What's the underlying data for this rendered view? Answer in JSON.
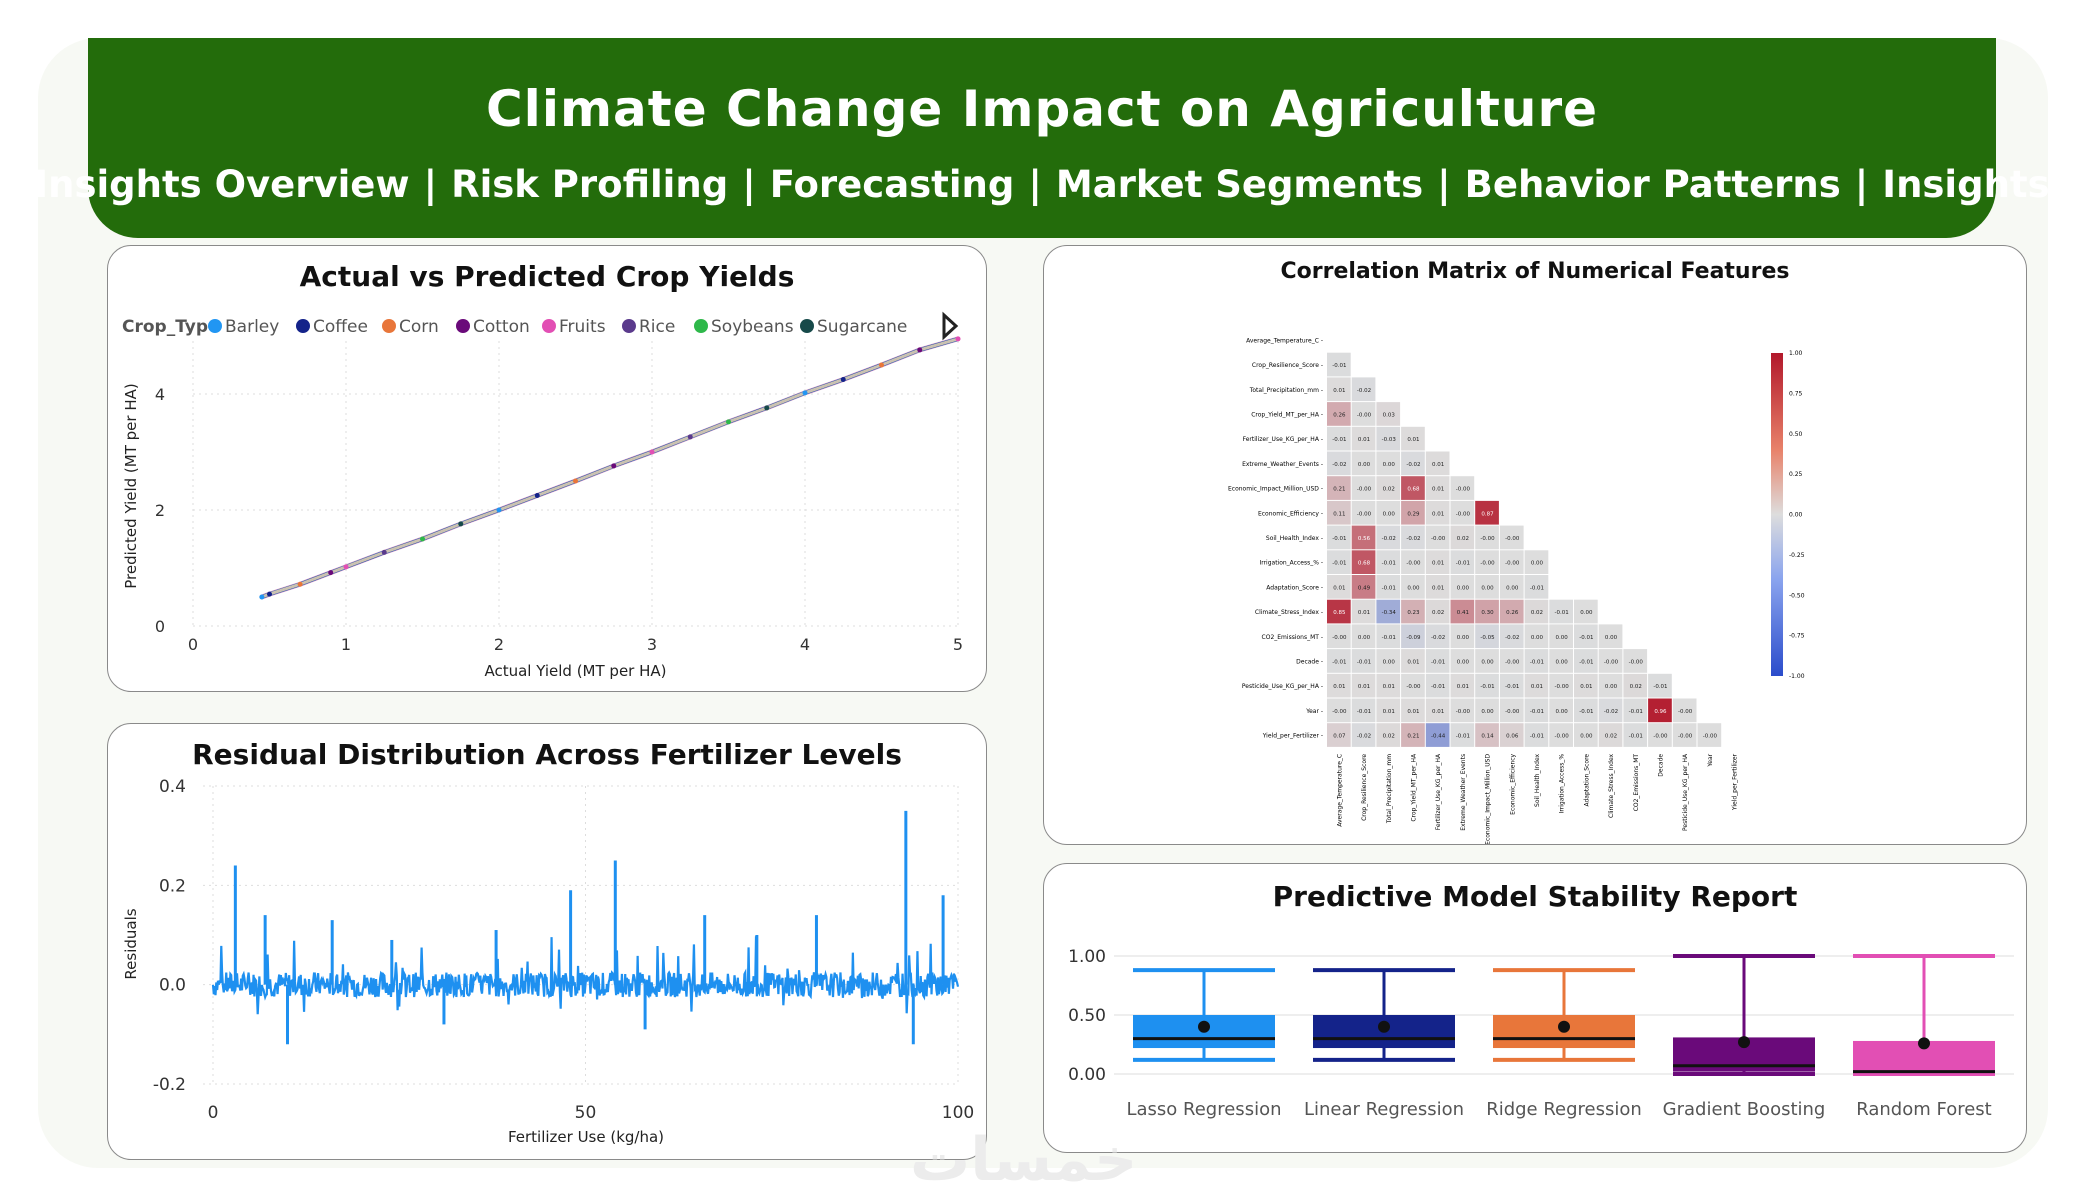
{
  "header": {
    "title": "Climate Change Impact on Agriculture",
    "nav": [
      "Insights Overview",
      "Risk Profiling",
      "Forecasting",
      "Market Segments",
      "Behavior Patterns",
      "Insights"
    ],
    "separator": "|"
  },
  "watermark": "خمسات",
  "colors": {
    "header_bg": "#236c0b",
    "blue": "#1e90f0",
    "corr_pos": "#b2182b",
    "corr_neg": "#2b4ccb"
  },
  "scatter": {
    "title": "Actual vs Predicted Crop Yields",
    "legend_title": "Crop_Type",
    "legend": [
      {
        "name": "Barley",
        "color": "#2196f3"
      },
      {
        "name": "Coffee",
        "color": "#14238a"
      },
      {
        "name": "Corn",
        "color": "#e8763a"
      },
      {
        "name": "Cotton",
        "color": "#6a0a7a"
      },
      {
        "name": "Fruits",
        "color": "#e24fb4"
      },
      {
        "name": "Rice",
        "color": "#5a3a8c"
      },
      {
        "name": "Soybeans",
        "color": "#2eb84a"
      },
      {
        "name": "Sugarcane",
        "color": "#174a4a"
      }
    ]
  },
  "residual": {
    "title": "Residual Distribution Across Fertilizer Levels"
  },
  "correlation": {
    "title": "Correlation Matrix of Numerical Features",
    "features": [
      "Average_Temperature_C",
      "Crop_Resilience_Score",
      "Total_Precipitation_mm",
      "Crop_Yield_MT_per_HA",
      "Fertilizer_Use_KG_per_HA",
      "Extreme_Weather_Events",
      "Economic_Impact_Million_USD",
      "Economic_Efficiency",
      "Soil_Health_Index",
      "Irrigation_Access_%",
      "Adaptation_Score",
      "Climate_Stress_Index",
      "CO2_Emissions_MT",
      "Decade",
      "Pesticide_Use_KG_per_HA",
      "Year",
      "Yield_per_Fertilizer"
    ],
    "rows": [
      [],
      [
        "-0.01"
      ],
      [
        "0.01",
        "-0.02"
      ],
      [
        "0.26",
        "-0.00",
        "0.03"
      ],
      [
        "-0.01",
        "0.01",
        "-0.03",
        "0.01"
      ],
      [
        "-0.02",
        "0.00",
        "0.00",
        "-0.02",
        "0.01"
      ],
      [
        "0.21",
        "-0.00",
        "0.02",
        "0.68",
        "0.01",
        "-0.00"
      ],
      [
        "0.11",
        "-0.00",
        "0.00",
        "0.29",
        "0.01",
        "-0.00",
        "0.87"
      ],
      [
        "-0.01",
        "0.56",
        "-0.02",
        "-0.02",
        "-0.00",
        "0.02",
        "-0.00",
        "-0.00"
      ],
      [
        "-0.01",
        "0.68",
        "-0.01",
        "-0.00",
        "0.01",
        "-0.01",
        "-0.00",
        "-0.00",
        "0.00"
      ],
      [
        "0.01",
        "0.49",
        "-0.01",
        "0.00",
        "0.01",
        "0.00",
        "0.00",
        "0.00",
        "-0.01"
      ],
      [
        "0.85",
        "0.01",
        "-0.34",
        "0.23",
        "0.02",
        "0.41",
        "0.30",
        "0.26",
        "0.02",
        "-0.01",
        "0.00"
      ],
      [
        "-0.00",
        "0.00",
        "-0.01",
        "-0.09",
        "-0.02",
        "0.00",
        "-0.05",
        "-0.02",
        "0.00",
        "0.00",
        "-0.01",
        "0.00"
      ],
      [
        "-0.01",
        "-0.01",
        "0.00",
        "0.01",
        "-0.01",
        "0.00",
        "0.00",
        "-0.00",
        "-0.01",
        "0.00",
        "-0.01",
        "-0.00",
        "-0.00"
      ],
      [
        "0.01",
        "0.01",
        "0.01",
        "-0.00",
        "-0.01",
        "0.01",
        "-0.01",
        "-0.01",
        "0.01",
        "-0.00",
        "0.01",
        "0.00",
        "0.02",
        "-0.01"
      ],
      [
        "-0.00",
        "-0.01",
        "0.01",
        "0.01",
        "0.01",
        "-0.00",
        "0.00",
        "-0.00",
        "-0.01",
        "0.00",
        "-0.01",
        "-0.02",
        "-0.01",
        "0.96",
        "-0.00"
      ],
      [
        "0.07",
        "-0.02",
        "0.02",
        "0.21",
        "-0.44",
        "-0.01",
        "0.14",
        "0.06",
        "-0.01",
        "-0.00",
        "0.00",
        "0.02",
        "-0.01",
        "-0.00",
        "-0.00",
        "-0.00"
      ]
    ],
    "colorbar_ticks": [
      "1.00",
      "0.75",
      "0.50",
      "0.25",
      "0.00",
      "-0.25",
      "-0.50",
      "-0.75",
      "-1.00"
    ]
  },
  "stability": {
    "title": "Predictive Model Stability Report"
  },
  "chart_data": [
    {
      "type": "scatter",
      "title": "Actual vs Predicted Crop Yields",
      "xlabel": "Actual Yield (MT per HA)",
      "ylabel": "Predicted Yield (MT per HA)",
      "xlim": [
        0,
        5
      ],
      "ylim": [
        0,
        5
      ],
      "xticks": [
        "0",
        "1",
        "2",
        "3",
        "4",
        "5"
      ],
      "yticks": [
        "0",
        "2",
        "4"
      ],
      "series_note": "points from 0.45 to 5.0 along the diagonal, colored by Crop_Type",
      "x": [
        0.45,
        0.5,
        0.7,
        0.9,
        1.0,
        1.25,
        1.5,
        1.75,
        2.0,
        2.25,
        2.5,
        2.75,
        3.0,
        3.25,
        3.5,
        3.75,
        4.0,
        4.25,
        4.5,
        4.75,
        5.0
      ],
      "y": [
        0.5,
        0.55,
        0.72,
        0.92,
        1.02,
        1.27,
        1.5,
        1.76,
        2.0,
        2.25,
        2.5,
        2.76,
        3.0,
        3.26,
        3.52,
        3.76,
        4.02,
        4.25,
        4.5,
        4.76,
        4.95
      ]
    },
    {
      "type": "line",
      "title": "Residual Distribution Across Fertilizer Levels",
      "xlabel": "Fertilizer Use (kg/ha)",
      "ylabel": "Residuals",
      "xlim": [
        0,
        100
      ],
      "ylim": [
        -0.2,
        0.4
      ],
      "xticks": [
        "0",
        "50",
        "100"
      ],
      "yticks": [
        "-0.2",
        "0.0",
        "0.2",
        "0.4"
      ],
      "series": [
        {
          "name": "Residuals",
          "color": "#1e90f0"
        }
      ],
      "spikes": [
        {
          "x": 3,
          "y": 0.24
        },
        {
          "x": 7,
          "y": 0.14
        },
        {
          "x": 10,
          "y": -0.12
        },
        {
          "x": 16,
          "y": 0.13
        },
        {
          "x": 24,
          "y": 0.09
        },
        {
          "x": 31,
          "y": -0.08
        },
        {
          "x": 38,
          "y": 0.11
        },
        {
          "x": 48,
          "y": 0.19
        },
        {
          "x": 54,
          "y": 0.25
        },
        {
          "x": 58,
          "y": -0.09
        },
        {
          "x": 66,
          "y": 0.14
        },
        {
          "x": 73,
          "y": 0.1
        },
        {
          "x": 81,
          "y": 0.14
        },
        {
          "x": 93,
          "y": 0.35
        },
        {
          "x": 94,
          "y": -0.12
        },
        {
          "x": 98,
          "y": 0.18
        }
      ]
    },
    {
      "type": "heatmap",
      "title": "Correlation Matrix of Numerical Features",
      "note": "lower-triangular matrix; values in correlation.rows",
      "range": [
        -1,
        1
      ]
    },
    {
      "type": "box",
      "title": "Predictive Model Stability Report",
      "categories": [
        "Lasso Regression",
        "Linear Regression",
        "Ridge Regression",
        "Gradient Boosting",
        "Random Forest"
      ],
      "yticks": [
        "0.00",
        "0.50",
        "1.00"
      ],
      "ylim": [
        -0.05,
        1.05
      ],
      "series": [
        {
          "name": "Lasso Regression",
          "color": "#1e90f0",
          "min": 0.12,
          "q1": 0.22,
          "median": 0.3,
          "q3": 0.5,
          "max": 0.88,
          "mean": 0.4
        },
        {
          "name": "Linear Regression",
          "color": "#14238a",
          "min": 0.12,
          "q1": 0.22,
          "median": 0.3,
          "q3": 0.5,
          "max": 0.88,
          "mean": 0.4
        },
        {
          "name": "Ridge Regression",
          "color": "#e8763a",
          "min": 0.12,
          "q1": 0.22,
          "median": 0.3,
          "q3": 0.5,
          "max": 0.88,
          "mean": 0.4
        },
        {
          "name": "Gradient Boosting",
          "color": "#6a0a7a",
          "min": 0.0,
          "q1": 0.02,
          "median": 0.07,
          "q3": 0.31,
          "max": 1.0,
          "mean": 0.27
        },
        {
          "name": "Random Forest",
          "color": "#e24fb4",
          "min": 0.0,
          "q1": 0.0,
          "median": 0.02,
          "q3": 0.28,
          "max": 1.0,
          "mean": 0.26
        }
      ]
    }
  ]
}
